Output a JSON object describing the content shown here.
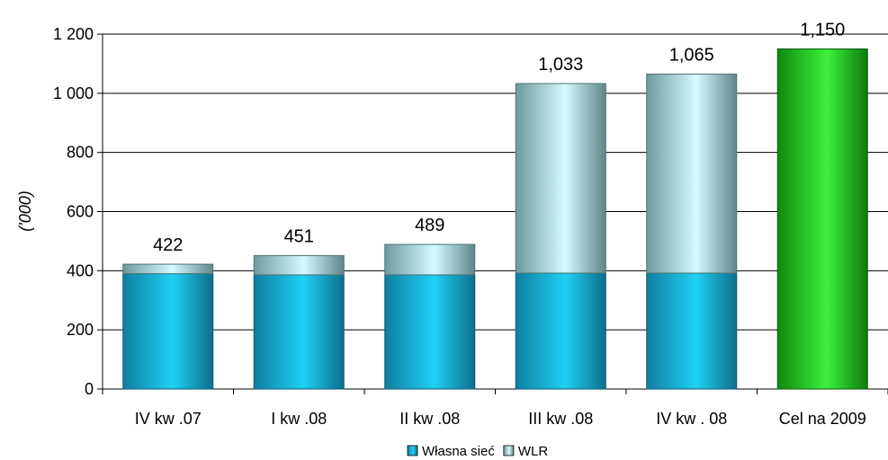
{
  "chart_data": {
    "type": "bar",
    "stacked": true,
    "categories": [
      "IV  kw .07",
      "I kw .08",
      "II kw .08",
      "III kw .08",
      "IV  kw . 08",
      "Cel na 2009"
    ],
    "series": [
      {
        "name": "Własna sieć",
        "values": [
          390,
          386,
          386,
          392,
          392,
          0
        ],
        "color": "#19b7e0"
      },
      {
        "name": "WLR",
        "values": [
          32,
          65,
          103,
          641,
          673,
          0
        ],
        "color": "#a9e8ec"
      },
      {
        "name": "",
        "values": [
          0,
          0,
          0,
          0,
          0,
          1150
        ],
        "color": "#22cc22"
      }
    ],
    "totals": [
      422,
      451,
      489,
      1033,
      1065,
      1150
    ],
    "total_labels": [
      "422",
      "451",
      "489",
      "1,033",
      "1,065",
      "1,150"
    ],
    "yticks": [
      0,
      200,
      400,
      600,
      800,
      1000,
      1200
    ],
    "ytick_labels": [
      "0",
      "200",
      "400",
      "600",
      "800",
      "1 000",
      "1 200"
    ],
    "ylim": [
      0,
      1200
    ],
    "ylabel": "('000)",
    "xlabel": "",
    "title": "",
    "grid": true,
    "legend_position": "bottom",
    "legend": [
      {
        "label": "Własna sieć",
        "color": "#19b7e0"
      },
      {
        "label": "WLR",
        "color": "#a9e8ec"
      }
    ]
  }
}
